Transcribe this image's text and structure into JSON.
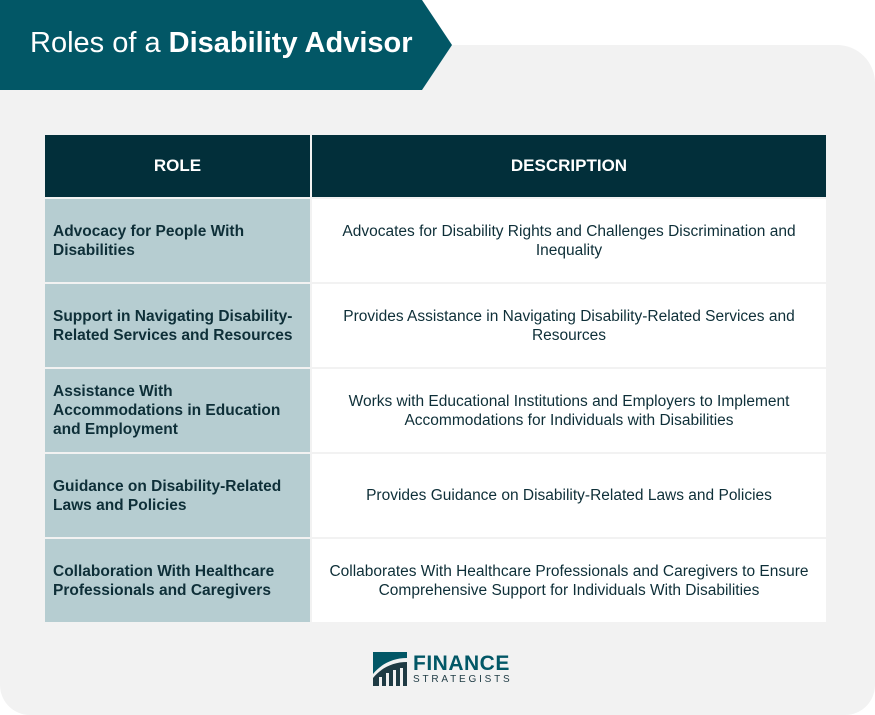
{
  "title": {
    "light": "Roles of a ",
    "bold": "Disability Advisor"
  },
  "table": {
    "headers": [
      "ROLE",
      "DESCRIPTION"
    ],
    "rows": [
      {
        "role": "Advocacy for People With Disabilities",
        "description": "Advocates for Disability Rights and Challenges Discrimination and Inequality"
      },
      {
        "role": "Support in Navigating Disability-Related Services and Resources",
        "description": "Provides Assistance in Navigating Disability-Related Services and Resources"
      },
      {
        "role": "Assistance With Accommodations in Education and Employment",
        "description": "Works with Educational Institutions and Employers to Implement Accommodations for Individuals with Disabilities"
      },
      {
        "role": "Guidance on Disability-Related Laws and Policies",
        "description": "Provides Guidance on Disability-Related Laws and Policies"
      },
      {
        "role": "Collaboration With Healthcare Professionals and Caregivers",
        "description": "Collaborates With Healthcare Professionals and Caregivers to Ensure Comprehensive Support for Individuals With Disabilities"
      }
    ]
  },
  "logo": {
    "line1": "FINANCE",
    "line2": "STRATEGISTS"
  },
  "colors": {
    "banner": "#025766",
    "header": "#022f3a",
    "role_cell": "#b6cdd1"
  }
}
